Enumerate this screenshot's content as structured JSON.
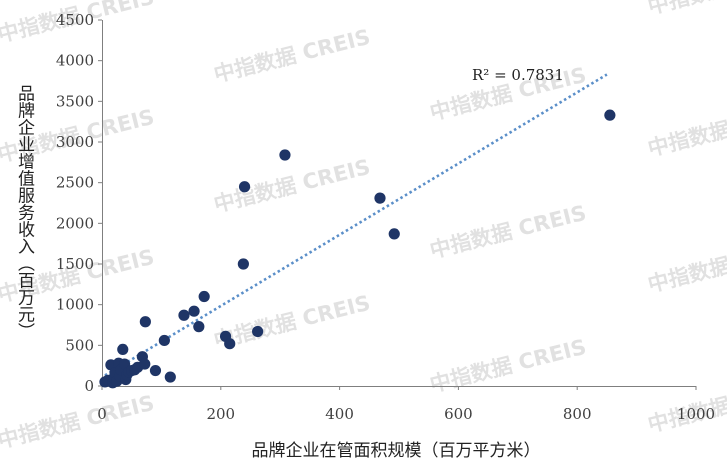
{
  "chart_data": {
    "type": "scatter",
    "xlabel": "品牌企业在管面积规模（百万平方米）",
    "ylabel": "品牌企业增值服务收入（百万元）",
    "xlim": [
      0,
      1000
    ],
    "ylim": [
      0,
      4500
    ],
    "x_ticks": [
      "0",
      "200",
      "400",
      "600",
      "800",
      "1000"
    ],
    "y_ticks": [
      "0",
      "500",
      "1000",
      "1500",
      "2000",
      "2500",
      "3000",
      "3500",
      "4000",
      "4500"
    ],
    "grid": false,
    "legend": "none",
    "marker_color": "#1f3566",
    "trendline": {
      "type": "linear",
      "style": "dotted",
      "color": "#5b8fc9",
      "x_range": [
        5,
        850
      ],
      "y_range": [
        130,
        3830
      ],
      "r2_label": "R² = 0.7831"
    },
    "points": [
      {
        "x": 5,
        "y": 50
      },
      {
        "x": 10,
        "y": 70
      },
      {
        "x": 15,
        "y": 260
      },
      {
        "x": 18,
        "y": 40
      },
      {
        "x": 20,
        "y": 100
      },
      {
        "x": 22,
        "y": 160
      },
      {
        "x": 25,
        "y": 60
      },
      {
        "x": 28,
        "y": 280
      },
      {
        "x": 30,
        "y": 120
      },
      {
        "x": 32,
        "y": 200
      },
      {
        "x": 35,
        "y": 450
      },
      {
        "x": 38,
        "y": 270
      },
      {
        "x": 40,
        "y": 80
      },
      {
        "x": 42,
        "y": 140
      },
      {
        "x": 45,
        "y": 170
      },
      {
        "x": 50,
        "y": 190
      },
      {
        "x": 55,
        "y": 200
      },
      {
        "x": 60,
        "y": 230
      },
      {
        "x": 68,
        "y": 360
      },
      {
        "x": 72,
        "y": 270
      },
      {
        "x": 73,
        "y": 790
      },
      {
        "x": 90,
        "y": 190
      },
      {
        "x": 105,
        "y": 560
      },
      {
        "x": 115,
        "y": 110
      },
      {
        "x": 138,
        "y": 870
      },
      {
        "x": 155,
        "y": 920
      },
      {
        "x": 163,
        "y": 730
      },
      {
        "x": 172,
        "y": 1100
      },
      {
        "x": 208,
        "y": 610
      },
      {
        "x": 215,
        "y": 520
      },
      {
        "x": 238,
        "y": 1500
      },
      {
        "x": 240,
        "y": 2450
      },
      {
        "x": 262,
        "y": 670
      },
      {
        "x": 308,
        "y": 2840
      },
      {
        "x": 468,
        "y": 2310
      },
      {
        "x": 492,
        "y": 1870
      },
      {
        "x": 855,
        "y": 3330
      }
    ],
    "watermark": "中指数据 CREIS"
  }
}
